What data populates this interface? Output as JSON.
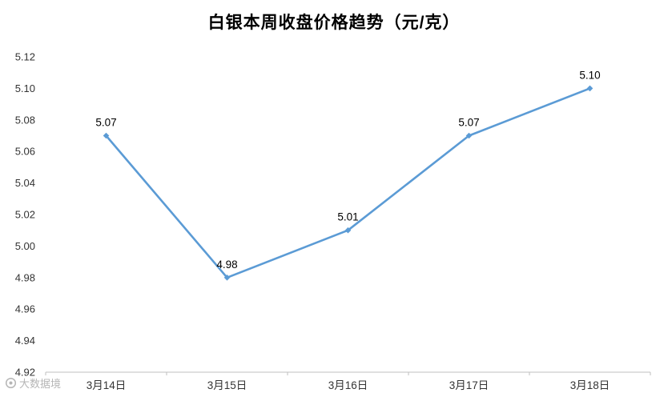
{
  "chart_data": {
    "type": "line",
    "title": "白银本周收盘价格趋势（元/克）",
    "categories": [
      "3月14日",
      "3月15日",
      "3月16日",
      "3月17日",
      "3月18日"
    ],
    "series": [
      {
        "name": "收盘价格",
        "values": [
          5.07,
          4.98,
          5.01,
          5.07,
          5.1
        ]
      }
    ],
    "values": [
      5.07,
      4.98,
      5.01,
      5.07,
      5.1
    ],
    "data_labels": [
      "5.07",
      "4.98",
      "5.01",
      "5.07",
      "5.10"
    ],
    "xlabel": "",
    "ylabel": "",
    "ylim": [
      4.92,
      5.12
    ],
    "ytick_step": 0.02,
    "y_tick_labels": [
      "4.92",
      "4.94",
      "4.96",
      "4.98",
      "5.00",
      "5.02",
      "5.04",
      "5.06",
      "5.08",
      "5.10",
      "5.12"
    ],
    "grid": false,
    "legend_position": "none",
    "line_color": "#5B9BD5",
    "axis_color": "#BFBFBF",
    "axis_label_color": "#333333",
    "data_label_color": "#000000"
  },
  "watermark": {
    "text": "大数据境"
  }
}
